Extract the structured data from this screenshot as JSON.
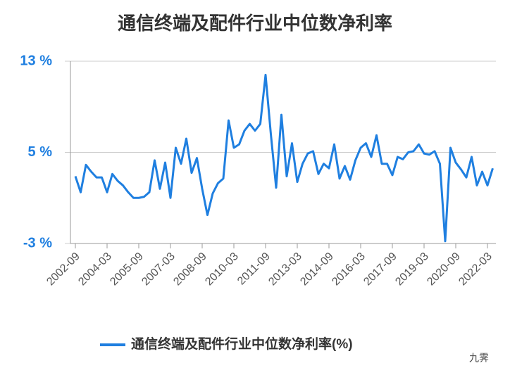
{
  "chart_data": {
    "type": "line",
    "title": "通信终端及配件行业中位数净利率",
    "categories": [
      "2002-09",
      null,
      null,
      null,
      null,
      null,
      "2004-03",
      null,
      null,
      null,
      null,
      null,
      "2005-09",
      null,
      null,
      null,
      null,
      null,
      "2007-03",
      null,
      null,
      null,
      null,
      null,
      "2008-09",
      null,
      null,
      null,
      null,
      null,
      "2010-03",
      null,
      null,
      null,
      null,
      null,
      "2011-09",
      null,
      null,
      null,
      null,
      null,
      "2013-03",
      null,
      null,
      null,
      null,
      null,
      "2014-09",
      null,
      null,
      null,
      null,
      null,
      "2016-03",
      null,
      null,
      null,
      null,
      null,
      "2017-09",
      null,
      null,
      null,
      null,
      null,
      "2019-03",
      null,
      null,
      null,
      null,
      null,
      "2020-09",
      null,
      null,
      null,
      null,
      null,
      "2022-03",
      null
    ],
    "series": [
      {
        "name": "通信终端及配件行业中位数净利率(%)",
        "color": "#1f7fe0",
        "values": [
          2.9,
          1.5,
          3.9,
          3.3,
          2.8,
          2.8,
          1.5,
          3.1,
          2.5,
          2.1,
          1.5,
          1.0,
          1.0,
          1.1,
          1.5,
          4.3,
          1.8,
          4.1,
          1.0,
          5.4,
          4.0,
          6.2,
          3.2,
          4.5,
          1.8,
          -0.5,
          1.4,
          2.3,
          2.7,
          7.8,
          5.4,
          5.7,
          6.9,
          7.5,
          6.9,
          7.5,
          11.8,
          6.6,
          1.9,
          8.3,
          2.9,
          5.8,
          2.4,
          4.0,
          4.9,
          5.1,
          3.1,
          4.0,
          3.6,
          5.7,
          2.7,
          3.8,
          2.6,
          4.3,
          5.4,
          5.8,
          4.6,
          6.5,
          4.0,
          4.0,
          3.0,
          4.6,
          4.4,
          5.0,
          5.1,
          5.7,
          4.9,
          4.8,
          5.1,
          4.0,
          -2.8,
          5.4,
          4.1,
          3.5,
          2.8,
          4.6,
          2.1,
          3.3,
          2.1,
          3.6
        ]
      }
    ],
    "ylim": [
      -3,
      13
    ],
    "yticks": [
      {
        "value": -3,
        "label": "-3 %"
      },
      {
        "value": 5,
        "label": "5 %"
      },
      {
        "value": 13,
        "label": "13 %"
      }
    ],
    "grid": true,
    "legend": "bottom",
    "watermark": "九霁"
  }
}
